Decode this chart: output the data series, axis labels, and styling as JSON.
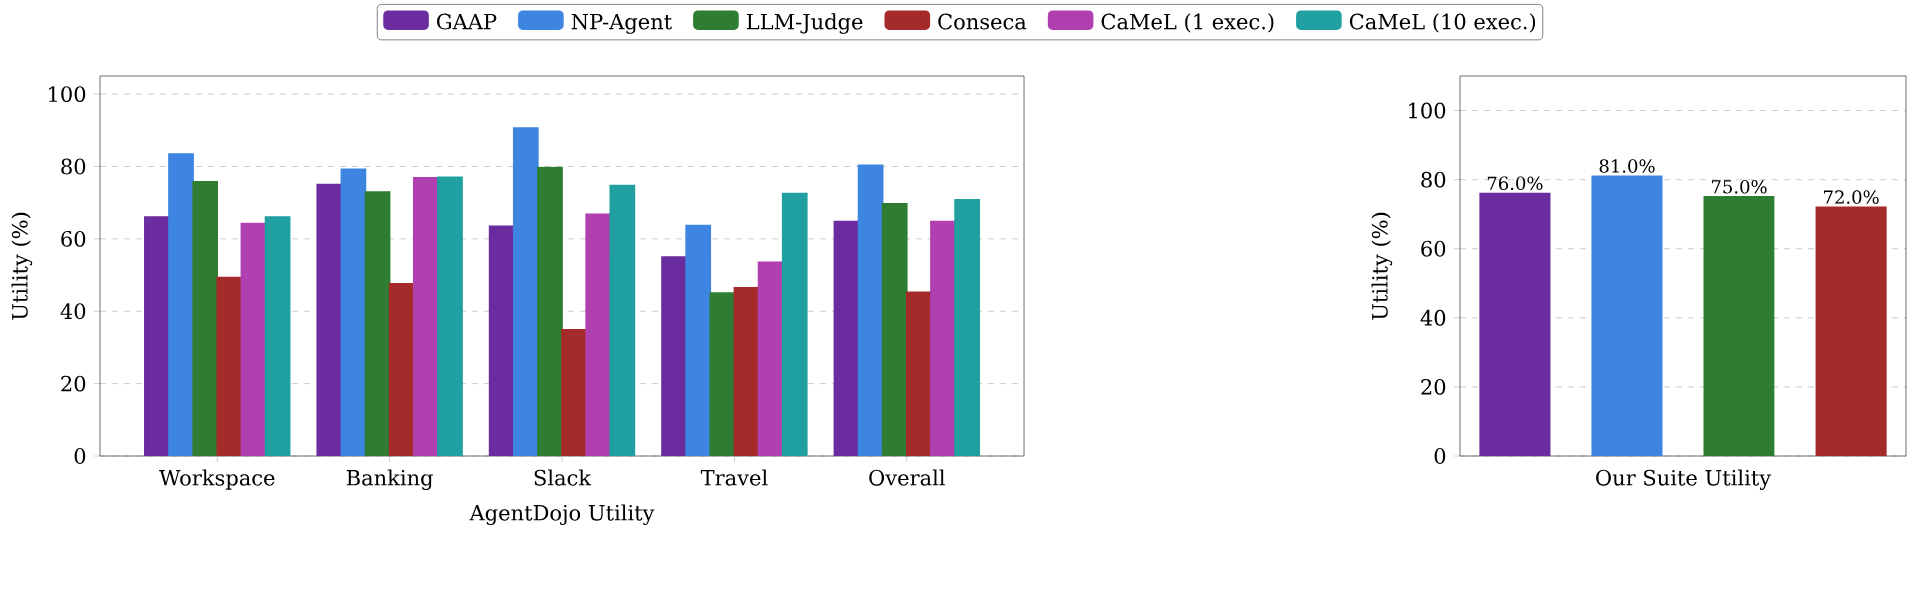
{
  "chart_data": [
    {
      "type": "bar",
      "xlabel": "AgentDojo Utility",
      "ylabel": "Utility (%)",
      "categories": [
        "Workspace",
        "Banking",
        "Slack",
        "Travel",
        "Overall"
      ],
      "ylim": [
        0,
        105
      ],
      "yticks": [
        0,
        20,
        40,
        60,
        80,
        100
      ],
      "grid": "y",
      "legend": "top",
      "series": [
        {
          "name": "GAAP",
          "color": "#6a2c9e",
          "values": [
            66,
            75,
            63.5,
            55,
            64.8
          ]
        },
        {
          "name": "NP-Agent",
          "color": "#3d85e0",
          "values": [
            83.4,
            79.2,
            90.6,
            63.7,
            80.3
          ]
        },
        {
          "name": "LLM-Judge",
          "color": "#2e7d32",
          "values": [
            75.8,
            72.9,
            79.7,
            45,
            69.7
          ]
        },
        {
          "name": "Conseca",
          "color": "#a52a2a",
          "values": [
            49.3,
            47.6,
            34.9,
            46.5,
            45.2
          ]
        },
        {
          "name": "CaMeL (1 exec.)",
          "color": "#b040b0",
          "values": [
            64.2,
            76.9,
            66.8,
            53.5,
            64.8
          ]
        },
        {
          "name": "CaMeL (10 exec.)",
          "color": "#20a0a0",
          "values": [
            66,
            77,
            74.7,
            72.5,
            70.8
          ]
        }
      ]
    },
    {
      "type": "bar",
      "xlabel": "Our Suite Utility",
      "ylabel": "Utility (%)",
      "categories": [
        null
      ],
      "ylim": [
        0,
        110
      ],
      "yticks": [
        0,
        20,
        40,
        60,
        80,
        100
      ],
      "grid": "y",
      "series": [
        {
          "color": "#6a2c9e",
          "values": [
            76
          ],
          "value_labels": [
            "76.0%"
          ]
        },
        {
          "color": "#3d85e0",
          "values": [
            81
          ],
          "value_labels": [
            "81.0%"
          ]
        },
        {
          "color": "#2e7d32",
          "values": [
            75
          ],
          "value_labels": [
            "75.0%"
          ]
        },
        {
          "color": "#a52a2a",
          "values": [
            72
          ],
          "value_labels": [
            "72.0%"
          ]
        }
      ]
    }
  ]
}
